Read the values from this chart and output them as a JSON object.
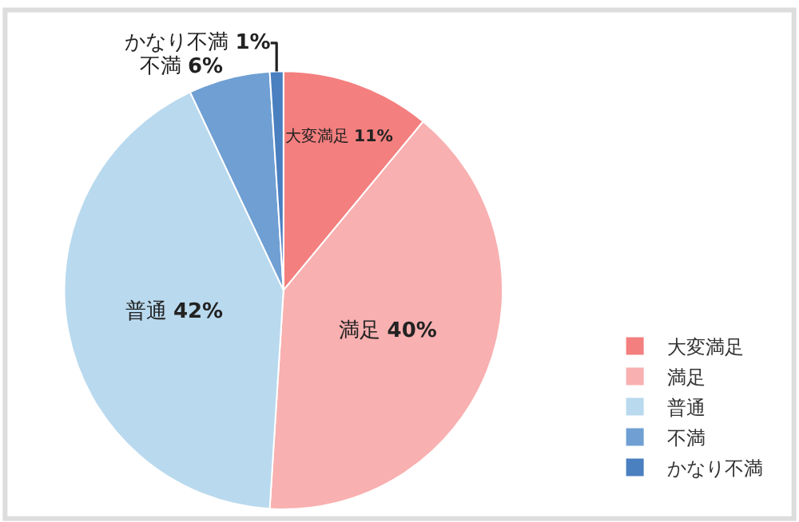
{
  "chart_data": {
    "type": "pie",
    "categories": [
      "大変満足",
      "満足",
      "普通",
      "不満",
      "かなり不満"
    ],
    "values": [
      11,
      40,
      42,
      6,
      1
    ],
    "value_labels": [
      "11%",
      "40%",
      "42%",
      "6%",
      "1%"
    ],
    "colors": [
      "#f47f7f",
      "#f9b0b0",
      "#b9d9ee",
      "#6f9fd3",
      "#4a7fc0"
    ],
    "data_labels": true,
    "legend": "bottom right"
  }
}
